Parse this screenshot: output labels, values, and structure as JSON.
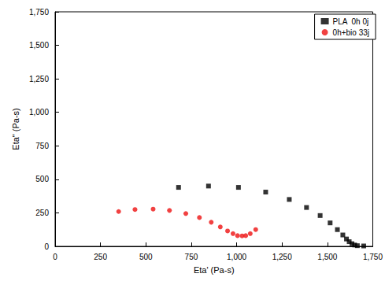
{
  "chart_data": {
    "type": "scatter",
    "x_label": "Eta' (Pa-s)",
    "y_label": "Eta\" (Pa-s)",
    "xlim": [
      0,
      1750
    ],
    "xticks": [
      0,
      250,
      500,
      750,
      1000,
      1250,
      1500,
      1750
    ],
    "ylim": [
      0,
      1750
    ],
    "yticks": [
      0,
      250,
      500,
      750,
      1000,
      1250,
      1500,
      1750
    ],
    "grid": false,
    "legend": "top-right",
    "series": [
      {
        "name": "PLA  0h 0j",
        "color": "#000000",
        "marker": "square",
        "x": [
          680,
          845,
          1010,
          1160,
          1290,
          1385,
          1460,
          1515,
          1555,
          1585,
          1605,
          1620,
          1635,
          1650,
          1665,
          1700
        ],
        "values": [
          440,
          450,
          440,
          405,
          350,
          290,
          230,
          175,
          125,
          85,
          55,
          35,
          20,
          10,
          5,
          3
        ]
      },
      {
        "name": "0h+bio 33j",
        "color": "#ee1111",
        "marker": "circle",
        "x": [
          350,
          440,
          540,
          630,
          720,
          795,
          860,
          910,
          950,
          980,
          1005,
          1030,
          1050,
          1075,
          1105
        ],
        "values": [
          260,
          275,
          278,
          268,
          245,
          215,
          180,
          145,
          115,
          95,
          80,
          78,
          80,
          95,
          125
        ]
      }
    ]
  }
}
